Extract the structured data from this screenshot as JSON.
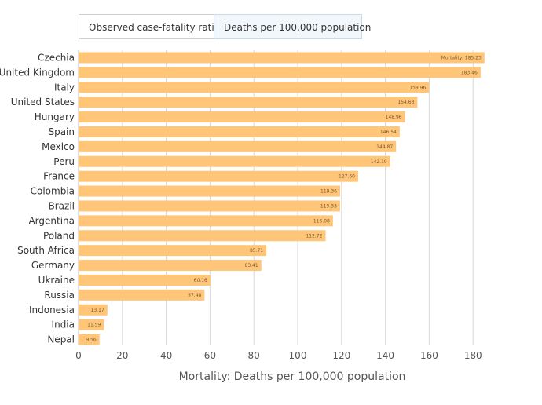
{
  "tabs": [
    {
      "label": "Observed case-fatality ratio",
      "active": false
    },
    {
      "label": "Deaths per 100,000 population",
      "active": true
    }
  ],
  "colors": {
    "bar": "#ffc67a",
    "grid": "#d8d8d8"
  },
  "chart_data": {
    "type": "bar",
    "orientation": "horizontal",
    "categories": [
      "Czechia",
      "United Kingdom",
      "Italy",
      "United States",
      "Hungary",
      "Spain",
      "Mexico",
      "Peru",
      "France",
      "Colombia",
      "Brazil",
      "Argentina",
      "Poland",
      "South Africa",
      "Germany",
      "Ukraine",
      "Russia",
      "Indonesia",
      "India",
      "Nepal"
    ],
    "values": [
      185.23,
      183.46,
      159.96,
      154.63,
      148.96,
      146.54,
      144.87,
      142.19,
      127.6,
      119.36,
      119.33,
      116.08,
      112.72,
      85.71,
      83.41,
      60.16,
      57.48,
      13.17,
      11.59,
      9.56
    ],
    "data_labels": [
      "Mortality: 185.23",
      "183.46",
      "159.96",
      "154.63",
      "148.96",
      "146.54",
      "144.87",
      "142.19",
      "127.60",
      "119.36",
      "119.33",
      "116.08",
      "112.72",
      "85.71",
      "83.41",
      "60.16",
      "57.48",
      "13.17",
      "11.59",
      "9.56"
    ],
    "xlim": [
      0,
      190
    ],
    "xticks": [
      0,
      20,
      40,
      60,
      80,
      100,
      120,
      140,
      160,
      180
    ],
    "xlabel": "Mortality: Deaths per 100,000 population",
    "grid": true
  }
}
